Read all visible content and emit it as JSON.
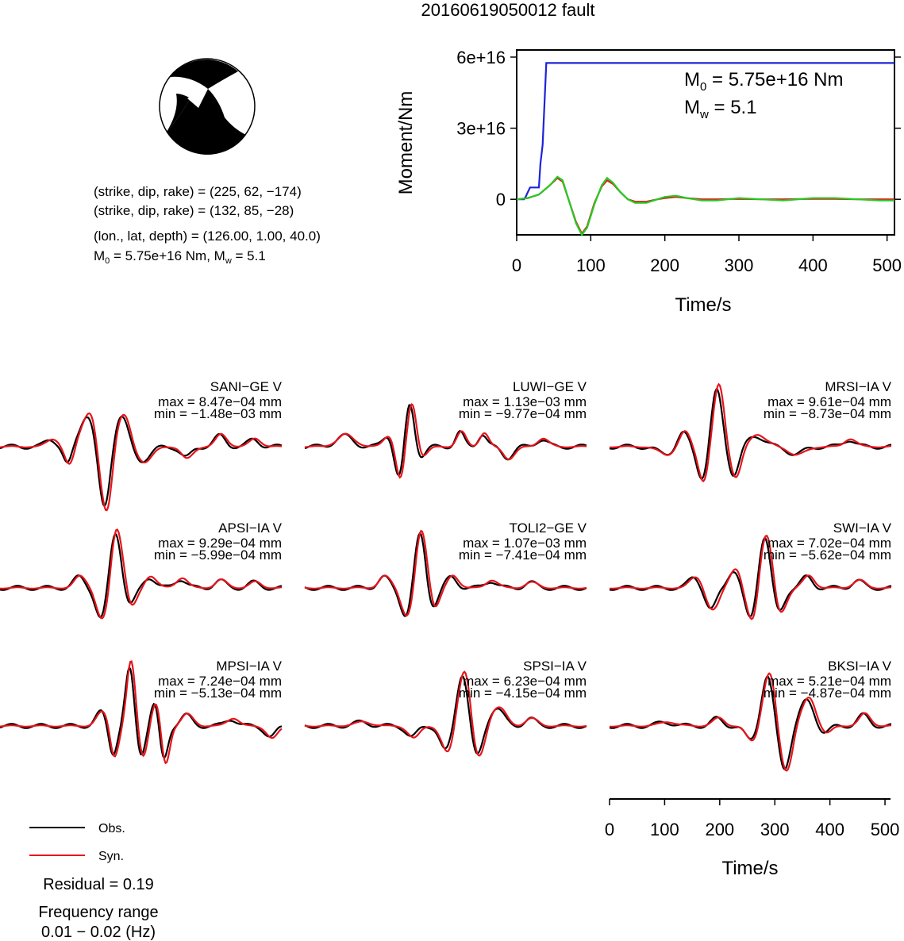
{
  "title": "20160619050012 fault",
  "mechanism": {
    "line1": "(strike, dip, rake) = (225, 62, −174)",
    "line2": "(strike, dip, rake) = (132, 85, −28)",
    "line3": "(lon., lat, depth) = (126.00, 1.00, 40.0)",
    "m0_label": "M",
    "m0_sub": "0",
    "m0_text": " = 5.75e+16 Nm, M",
    "mw_sub": "w",
    "mw_text": " = 5.1"
  },
  "moment_plot": {
    "ylabel": "Moment/Nm",
    "xlabel": "Time/s",
    "m0_label": "M",
    "m0_sub": "0",
    "m0_value": " = 5.75e+16 Nm",
    "mw_label": "M",
    "mw_sub": "w",
    "mw_value": " = 5.1",
    "y_ticks": [
      "6e+16",
      "3e+16",
      "0"
    ],
    "x_ticks": [
      "0",
      "100",
      "200",
      "300",
      "400",
      "500"
    ]
  },
  "wave_axis": {
    "xlabel": "Time/s",
    "x_ticks": [
      "0",
      "100",
      "200",
      "300",
      "400",
      "500"
    ]
  },
  "legend": {
    "obs": "Obs.",
    "syn": "Syn.",
    "residual": "Residual = 0.19",
    "freq_title": "Frequency range",
    "freq_value": "0.01 − 0.02 (Hz)"
  },
  "colors": {
    "observed": "#000000",
    "synthetic": "#e8141c",
    "moment_cumulative": "#1c24d8",
    "moment_rate_green": "#22cc22"
  },
  "stations": [
    {
      "name": "SANI−GE V",
      "max": "max = 8.47e−04 mm",
      "min": "min = −1.48e−03 mm"
    },
    {
      "name": "LUWI−GE V",
      "max": "max = 1.13e−03 mm",
      "min": "min = −9.77e−04 mm"
    },
    {
      "name": "MRSI−IA V",
      "max": "max = 9.61e−04 mm",
      "min": "min = −8.73e−04 mm"
    },
    {
      "name": "APSI−IA V",
      "max": "max = 9.29e−04 mm",
      "min": "min = −5.99e−04 mm"
    },
    {
      "name": "TOLI2−GE V",
      "max": "max = 1.07e−03 mm",
      "min": "min = −7.41e−04 mm"
    },
    {
      "name": "SWI−IA V",
      "max": "max = 7.02e−04 mm",
      "min": "min = −5.62e−04 mm"
    },
    {
      "name": "MPSI−IA V",
      "max": "max = 7.24e−04 mm",
      "min": "min = −5.13e−04 mm"
    },
    {
      "name": "SPSI−IA V",
      "max": "max = 6.23e−04 mm",
      "min": "min = −4.15e−04 mm"
    },
    {
      "name": "BKSI−IA V",
      "max": "max = 5.21e−04 mm",
      "min": "min = −4.87e−04 mm"
    }
  ],
  "chart_data": [
    {
      "type": "line",
      "xlabel": "Time/s",
      "ylabel": "Moment/Nm",
      "xlim": [
        0,
        510
      ],
      "ylim": [
        -1.5e+16,
        6.3e+16
      ],
      "series": [
        {
          "x": [
            0,
            10,
            12,
            18,
            30,
            32,
            35,
            40,
            42,
            510
          ],
          "y": [
            0,
            0,
            1000000000000000.0,
            5000000000000000.0,
            5000000000000000.0,
            1.5e+16,
            2.3e+16,
            5.75e+16,
            5.75e+16,
            5.75e+16
          ]
        },
        {
          "x": [
            0,
            15,
            30,
            45,
            55,
            62,
            70,
            80,
            88,
            95,
            105,
            115,
            122,
            130,
            140,
            150,
            160,
            175,
            190,
            200,
            215,
            230,
            250,
            270,
            300,
            330,
            360,
            400,
            430,
            460,
            490,
            510
          ],
          "y": [
            0,
            500000000000000.0,
            2000000000000000.0,
            6000000000000000.0,
            9500000000000000.0,
            8000000000000000.0,
            0,
            -1e+16,
            -1.5e+16,
            -1.2e+16,
            -2000000000000000.0,
            6000000000000000.0,
            9000000000000000.0,
            7000000000000000.0,
            3000000000000000.0,
            0,
            -1500000000000000.0,
            -1500000000000000.0,
            0,
            1000000000000000.0,
            1500000000000000.0,
            500000000000000.0,
            -500000000000000.0,
            -500000000000000.0,
            500000000000000.0,
            0,
            -500000000000000.0,
            500000000000000.0,
            500000000000000.0,
            0,
            -500000000000000.0,
            -500000000000000.0
          ]
        },
        {
          "x": [
            0,
            15,
            30,
            45,
            55,
            62,
            70,
            80,
            88,
            95,
            105,
            115,
            122,
            130,
            140,
            150,
            160,
            175,
            190,
            200,
            215,
            230,
            250,
            270,
            300,
            330,
            360,
            400,
            430,
            460,
            490,
            510
          ],
          "y": [
            0,
            500000000000000.0,
            2000000000000000.0,
            6000000000000000.0,
            9000000000000000.0,
            7500000000000000.0,
            0,
            -9500000000000000.0,
            -1.45e+16,
            -1.15e+16,
            -1500000000000000.0,
            5500000000000000.0,
            8000000000000000.0,
            6500000000000000.0,
            3000000000000000.0,
            0,
            -1000000000000000.0,
            -1000000000000000.0,
            0,
            500000000000000.0,
            1000000000000000.0,
            500000000000000.0,
            0,
            0,
            200000000000000.0,
            0,
            0,
            200000000000000.0,
            200000000000000.0,
            0,
            0,
            0
          ]
        }
      ]
    }
  ]
}
